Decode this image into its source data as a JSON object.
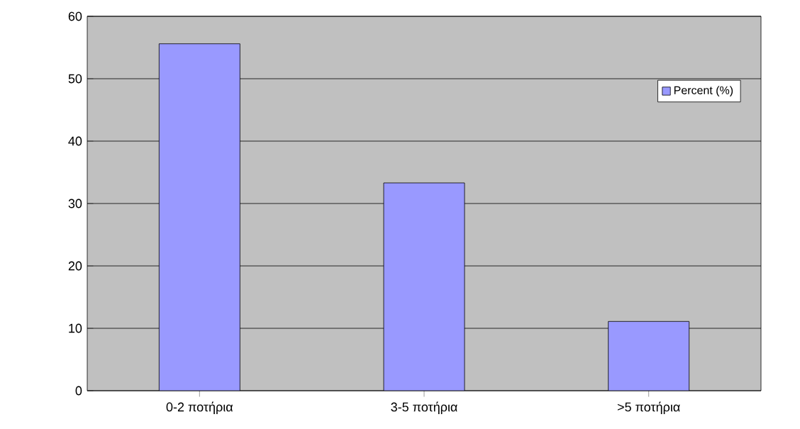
{
  "chart_data": {
    "type": "bar",
    "categories": [
      "0-2 ποτήρια",
      "3-5 ποτήρια",
      ">5 ποτήρια"
    ],
    "series": [
      {
        "name": "Percent (%)",
        "color": "#9999ff",
        "values": [
          55.6,
          33.3,
          11.1
        ]
      }
    ],
    "ylim": [
      0,
      60
    ],
    "yticks": [
      0,
      10,
      20,
      30,
      40,
      50,
      60
    ],
    "grid": "y",
    "legend": "top right"
  }
}
